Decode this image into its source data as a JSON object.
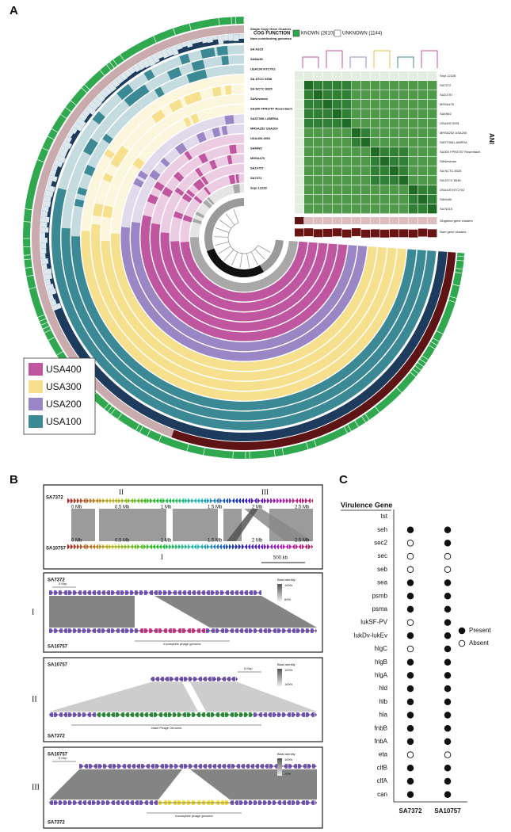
{
  "panel_a": {
    "label": "A",
    "cog_title": "COG FUNCTION",
    "cog_known": "KNOWN (2610)",
    "cog_unknown": "UNKNOWN (1144)",
    "layers": [
      "Single Copy Gene Clusters",
      "Num contributing genomes"
    ],
    "genomes": [
      "SA N315",
      "SAMu50",
      "USA100 NTCY02",
      "SA ATCC 6538",
      "SA NCTC 8325",
      "SANewman",
      "SA300 FPR3757 Rosenbach",
      "SAST398 LAMRSA",
      "MRSA252 USA200",
      "USA400-0051",
      "SAMW2",
      "MSSA476",
      "SA10757",
      "SA7372",
      "Sepi 12228"
    ],
    "ani_title": "ANI",
    "heatmap_labels": [
      "Sepi 12228",
      "SA7372",
      "SA10757",
      "MSSA476",
      "SAMW2",
      "USA400 0051",
      "MRSA252 USA200",
      "SAST398 LAMRSA",
      "SA300 FPR3757 Rosenbach",
      "SANewman",
      "SA NCTC 8325",
      "SA ATCC 6538",
      "USA100 NTCY02",
      "SAMu50",
      "SA N315"
    ],
    "extra_rows": [
      "Singleton gene clusters",
      "Num gene clusters"
    ],
    "legend": [
      {
        "name": "USA400",
        "color": "#c0569f"
      },
      {
        "name": "USA300",
        "color": "#f6e08e"
      },
      {
        "name": "USA200",
        "color": "#9a86c4"
      },
      {
        "name": "USA100",
        "color": "#3c8996"
      }
    ]
  },
  "panel_b": {
    "label": "B",
    "overview": {
      "top": "SA7372",
      "bottom": "SA10757",
      "scale": [
        "0 Mb",
        "0.5 Mb",
        "1 Mb",
        "1.5 Mb",
        "2 Mb",
        "2.5 Mb"
      ],
      "regions": [
        "II",
        "III",
        "I"
      ],
      "scale_bar": "500 kb"
    },
    "insets": [
      {
        "numeral": "I",
        "top": "SA7372",
        "bottom": "SA10757",
        "scale_bar": "5 Kbp",
        "identity_title": "Blast identity",
        "identity_max": "100%",
        "identity_min": "69%",
        "phage": "Incomplete phage genome"
      },
      {
        "numeral": "II",
        "top": "SA10757",
        "bottom": "SA7372",
        "scale_bar": "5 Kbp",
        "identity_title": "Blast identity",
        "identity_max": "100%",
        "identity_min": "100%",
        "phage": "Intact Phage Genome"
      },
      {
        "numeral": "III",
        "top": "SA10757",
        "bottom": "SA7372",
        "scale_bar": "5 Kbp",
        "identity_title": "Blast identity",
        "identity_max": "100%",
        "identity_min": "70%",
        "phage": "Incomplete phage genome"
      }
    ]
  },
  "panel_c": {
    "label": "C",
    "title": "Virulence Gene",
    "genes": [
      "tst",
      "seh",
      "sec2",
      "sec",
      "seb",
      "sea",
      "psmb",
      "psma",
      "lukSF-PV",
      "lukDv-lukEv",
      "hlgC",
      "hlgB",
      "hlgA",
      "hld",
      "hlb",
      "hla",
      "fnbB",
      "fnbA",
      "eta",
      "clfB",
      "clfA",
      "can"
    ],
    "strains": [
      "SA7372",
      "SA10757"
    ],
    "presence": [
      [
        null,
        1,
        0,
        0,
        0,
        1,
        1,
        1,
        0,
        1,
        0,
        1,
        1,
        1,
        1,
        1,
        1,
        1,
        0,
        1,
        1,
        1
      ],
      [
        null,
        1,
        1,
        0,
        0,
        1,
        1,
        1,
        1,
        1,
        1,
        1,
        1,
        1,
        1,
        1,
        1,
        1,
        0,
        1,
        1,
        1
      ]
    ],
    "legend": [
      "Present",
      "Absent"
    ]
  }
}
